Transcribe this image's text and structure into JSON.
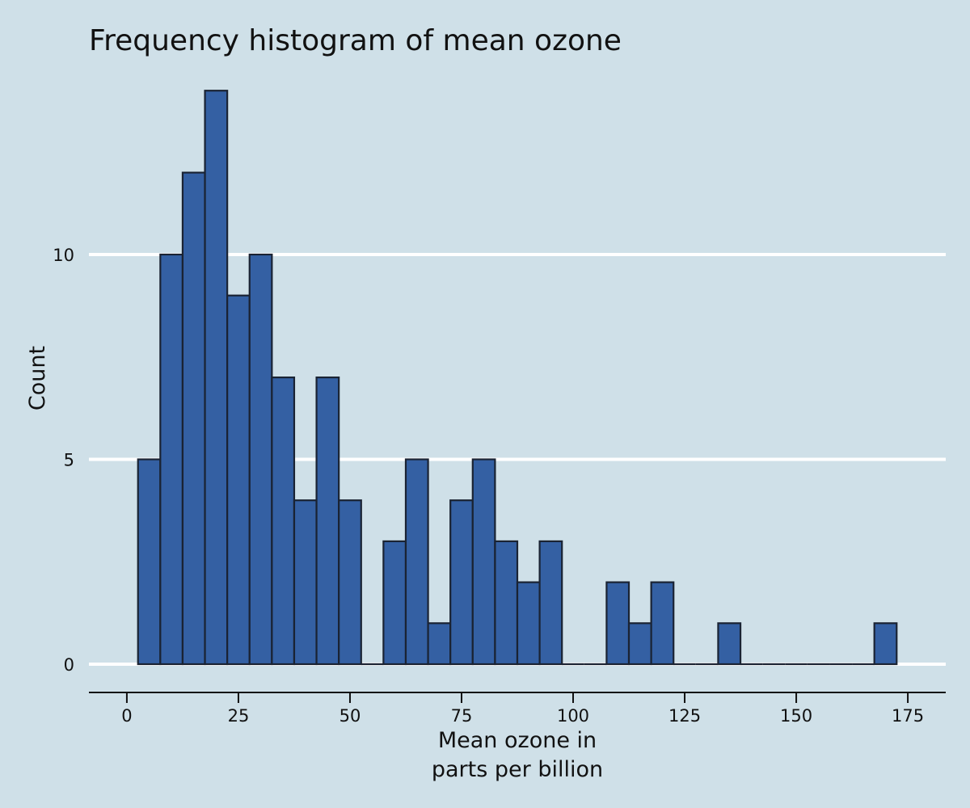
{
  "chart_data": {
    "type": "bar",
    "title": "Frequency histogram of mean ozone",
    "xlabel_lines": [
      "Mean ozone in",
      "parts per billion"
    ],
    "ylabel": "Count",
    "bin_width": 5,
    "bins": [
      {
        "x0": 2.5,
        "x1": 7.5,
        "count": 5
      },
      {
        "x0": 7.5,
        "x1": 12.5,
        "count": 10
      },
      {
        "x0": 12.5,
        "x1": 17.5,
        "count": 12
      },
      {
        "x0": 17.5,
        "x1": 22.5,
        "count": 14
      },
      {
        "x0": 22.5,
        "x1": 27.5,
        "count": 9
      },
      {
        "x0": 27.5,
        "x1": 32.5,
        "count": 10
      },
      {
        "x0": 32.5,
        "x1": 37.5,
        "count": 7
      },
      {
        "x0": 37.5,
        "x1": 42.5,
        "count": 4
      },
      {
        "x0": 42.5,
        "x1": 47.5,
        "count": 7
      },
      {
        "x0": 47.5,
        "x1": 52.5,
        "count": 4
      },
      {
        "x0": 52.5,
        "x1": 57.5,
        "count": 0
      },
      {
        "x0": 57.5,
        "x1": 62.5,
        "count": 3
      },
      {
        "x0": 62.5,
        "x1": 67.5,
        "count": 5
      },
      {
        "x0": 67.5,
        "x1": 72.5,
        "count": 1
      },
      {
        "x0": 72.5,
        "x1": 77.5,
        "count": 4
      },
      {
        "x0": 77.5,
        "x1": 82.5,
        "count": 5
      },
      {
        "x0": 82.5,
        "x1": 87.5,
        "count": 3
      },
      {
        "x0": 87.5,
        "x1": 92.5,
        "count": 2
      },
      {
        "x0": 92.5,
        "x1": 97.5,
        "count": 3
      },
      {
        "x0": 97.5,
        "x1": 102.5,
        "count": 0
      },
      {
        "x0": 102.5,
        "x1": 107.5,
        "count": 0
      },
      {
        "x0": 107.5,
        "x1": 112.5,
        "count": 2
      },
      {
        "x0": 112.5,
        "x1": 117.5,
        "count": 1
      },
      {
        "x0": 117.5,
        "x1": 122.5,
        "count": 2
      },
      {
        "x0": 122.5,
        "x1": 127.5,
        "count": 0
      },
      {
        "x0": 127.5,
        "x1": 132.5,
        "count": 0
      },
      {
        "x0": 132.5,
        "x1": 137.5,
        "count": 1
      },
      {
        "x0": 137.5,
        "x1": 142.5,
        "count": 0
      },
      {
        "x0": 142.5,
        "x1": 147.5,
        "count": 0
      },
      {
        "x0": 147.5,
        "x1": 152.5,
        "count": 0
      },
      {
        "x0": 152.5,
        "x1": 157.5,
        "count": 0
      },
      {
        "x0": 157.5,
        "x1": 162.5,
        "count": 0
      },
      {
        "x0": 162.5,
        "x1": 167.5,
        "count": 0
      },
      {
        "x0": 167.5,
        "x1": 172.5,
        "count": 1
      }
    ],
    "x_ticks": [
      0,
      25,
      50,
      75,
      100,
      125,
      150,
      175
    ],
    "y_ticks": [
      0,
      5,
      10
    ],
    "xlim": [
      -8.5,
      183.5
    ],
    "ylim": [
      0,
      14.5
    ],
    "grid": "horizontal",
    "colors": {
      "background": "#cfe0e8",
      "bar_fill": "#3460a3",
      "bar_stroke": "#1a2333",
      "grid": "#ffffff",
      "axis": "#111111"
    }
  }
}
